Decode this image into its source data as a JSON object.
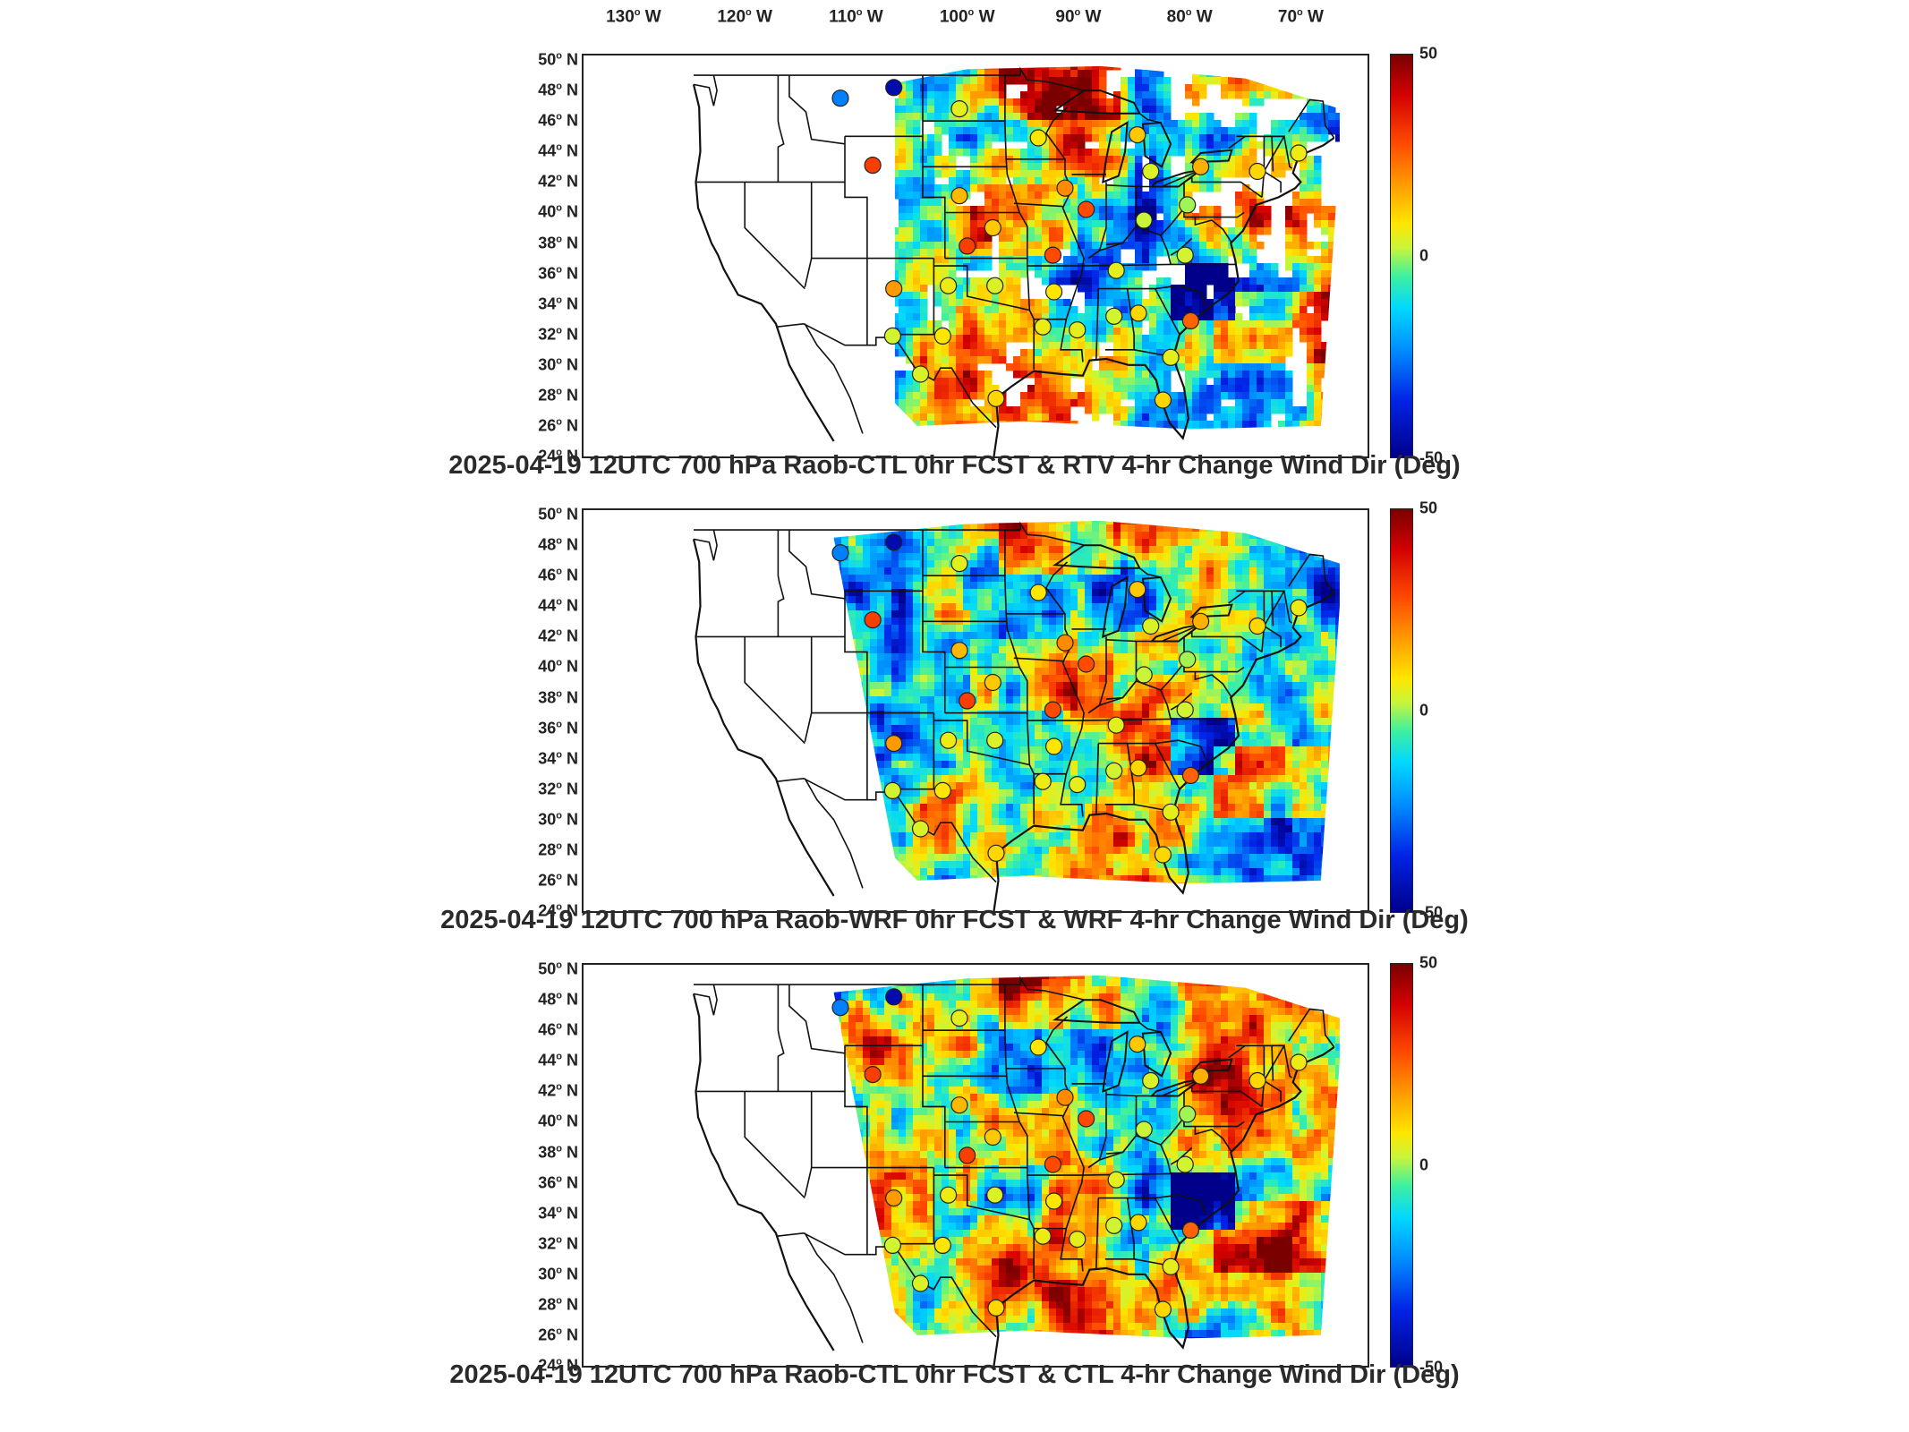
{
  "longitude_labels": [
    "130",
    "120",
    "110",
    "100",
    "90",
    "80",
    "70"
  ],
  "longitude_suffix": "W",
  "latitude_labels": [
    "50",
    "48",
    "46",
    "44",
    "42",
    "40",
    "38",
    "36",
    "34",
    "32",
    "30",
    "28",
    "26",
    "24"
  ],
  "latitude_suffix": "N",
  "colorbar": {
    "max_label": "50",
    "mid_label": "0",
    "min_label": "-50",
    "range": [
      -50,
      50
    ]
  },
  "panels": [
    {
      "id": "rtv",
      "title": "2025-04-19 12UTC 700 hPa Raob-CTL 0hr FCST & RTV 4-hr Change Wind Dir (Deg)",
      "field_domain": "partial-with-gaps"
    },
    {
      "id": "wrf",
      "title": "2025-04-19 12UTC 700 hPa Raob-WRF 0hr FCST & WRF 4-hr Change Wind Dir (Deg)",
      "field_domain": "full"
    },
    {
      "id": "ctl",
      "title": "2025-04-19 12UTC 700 hPa Raob-CTL 0hr FCST & CTL 4-hr Change Wind Dir (Deg)",
      "field_domain": "full"
    }
  ],
  "raob_stations": [
    {
      "lon": -111.4,
      "lat": 47.5,
      "value": -25
    },
    {
      "lon": -106.6,
      "lat": 48.2,
      "value": -45
    },
    {
      "lon": -108.5,
      "lat": 43.1,
      "value": 30
    },
    {
      "lon": -100.7,
      "lat": 46.8,
      "value": 5
    },
    {
      "lon": -93.6,
      "lat": 44.9,
      "value": 8
    },
    {
      "lon": -84.7,
      "lat": 45.1,
      "value": 12
    },
    {
      "lon": -83.5,
      "lat": 42.7,
      "value": 4
    },
    {
      "lon": -79.0,
      "lat": 43.0,
      "value": 15
    },
    {
      "lon": -73.9,
      "lat": 42.7,
      "value": 10
    },
    {
      "lon": -70.2,
      "lat": 43.9,
      "value": 6
    },
    {
      "lon": -100.7,
      "lat": 41.1,
      "value": 14
    },
    {
      "lon": -91.2,
      "lat": 41.6,
      "value": 20
    },
    {
      "lon": -89.3,
      "lat": 40.2,
      "value": 28
    },
    {
      "lon": -84.1,
      "lat": 39.5,
      "value": 2
    },
    {
      "lon": -80.2,
      "lat": 40.5,
      "value": 0
    },
    {
      "lon": -97.7,
      "lat": 39.0,
      "value": 12
    },
    {
      "lon": -100.0,
      "lat": 37.8,
      "value": 30
    },
    {
      "lon": -92.3,
      "lat": 37.2,
      "value": 28
    },
    {
      "lon": -86.6,
      "lat": 36.2,
      "value": 5
    },
    {
      "lon": -80.4,
      "lat": 37.2,
      "value": 3
    },
    {
      "lon": -106.6,
      "lat": 35.0,
      "value": 18
    },
    {
      "lon": -101.7,
      "lat": 35.2,
      "value": 6
    },
    {
      "lon": -97.5,
      "lat": 35.2,
      "value": 4
    },
    {
      "lon": -92.2,
      "lat": 34.8,
      "value": 8
    },
    {
      "lon": -86.8,
      "lat": 33.2,
      "value": 3
    },
    {
      "lon": -84.6,
      "lat": 33.4,
      "value": 10
    },
    {
      "lon": -90.1,
      "lat": 32.3,
      "value": 5
    },
    {
      "lon": -106.7,
      "lat": 31.9,
      "value": 3
    },
    {
      "lon": -102.2,
      "lat": 31.9,
      "value": 8
    },
    {
      "lon": -93.2,
      "lat": 32.5,
      "value": 6
    },
    {
      "lon": -79.9,
      "lat": 32.9,
      "value": 25
    },
    {
      "lon": -81.7,
      "lat": 30.5,
      "value": 5
    },
    {
      "lon": -97.4,
      "lat": 27.8,
      "value": 10
    },
    {
      "lon": -82.4,
      "lat": 27.7,
      "value": 10
    },
    {
      "lon": -104.2,
      "lat": 29.4,
      "value": 4
    }
  ]
}
